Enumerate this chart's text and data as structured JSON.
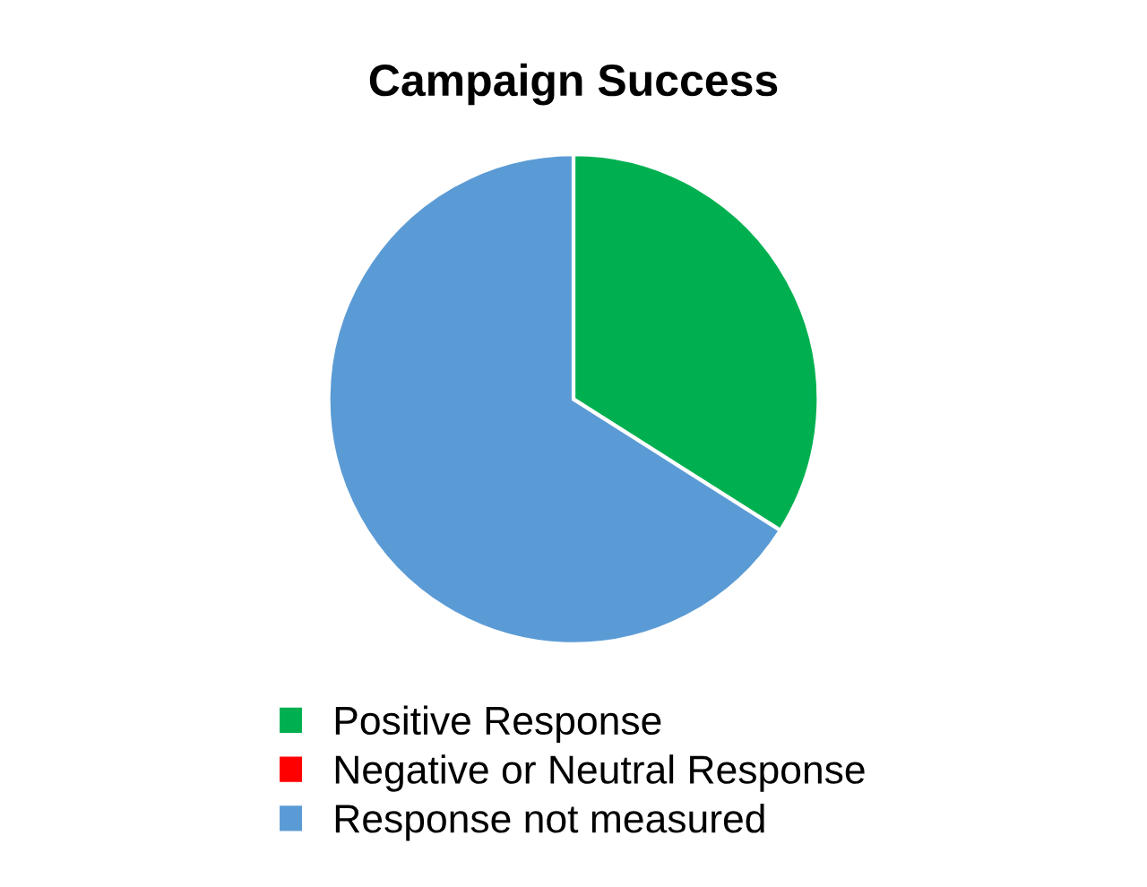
{
  "chart_data": {
    "type": "pie",
    "title": "Campaign Success",
    "categories": [
      "Positive Response",
      "Negative or Neutral Response",
      "Response not measured"
    ],
    "values": [
      34,
      0,
      66
    ],
    "colors": [
      "#00b050",
      "#ff0000",
      "#5b9bd5"
    ],
    "legend": "bottom"
  }
}
